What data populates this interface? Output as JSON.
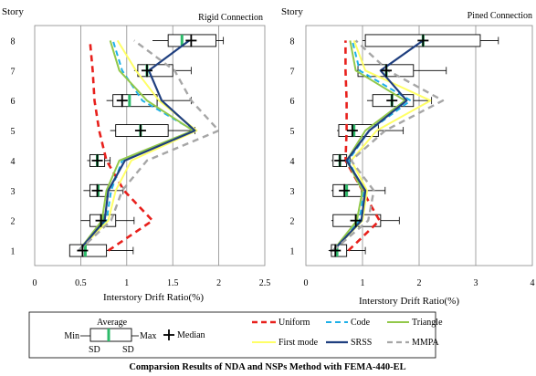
{
  "caption": "Comparsion Results of NDA and NSPs Method with FEMA-440-EL",
  "legend": {
    "box_average": "Average",
    "box_min": "Min",
    "box_max": "Max",
    "box_sd_left": "SD",
    "box_sd_right": "SD",
    "median": "Median",
    "uniform": "Uniform",
    "code": "Code",
    "triangle": "Triangle",
    "first_mode": "First mode",
    "srss": "SRSS",
    "mmpa": "MMPA"
  },
  "colors": {
    "uniform": "#e8201c",
    "code": "#1eb0e8",
    "triangle": "#92c84a",
    "first_mode": "#ffff66",
    "srss": "#1f3f7f",
    "mmpa": "#a6a6a6",
    "average": "#2dbb6a"
  },
  "chart_data": [
    {
      "type": "boxplot-line",
      "title": "Rigid Connection",
      "xlabel": "Interstory Drift Ratio(%)",
      "ylabel": "Story",
      "xlim": [
        0,
        2.5
      ],
      "xticks": [
        "0",
        "0.5",
        "1",
        "1.5",
        "2",
        "2.5"
      ],
      "xtick_values": [
        0,
        0.5,
        1,
        1.5,
        2,
        2.5
      ],
      "stories": [
        1,
        2,
        3,
        4,
        5,
        6,
        7,
        8
      ],
      "story_labels": [
        "1",
        "2",
        "3",
        "4",
        "5",
        "6",
        "7",
        "8"
      ],
      "grid": "vertical",
      "boxes": [
        {
          "story": 1,
          "min": 0.48,
          "sd_low": 0.38,
          "sd_high": 0.78,
          "max": 1.07,
          "average": 0.55,
          "median": 0.52
        },
        {
          "story": 2,
          "min": 0.5,
          "sd_low": 0.6,
          "sd_high": 0.88,
          "max": 1.08,
          "average": 0.74,
          "median": 0.72
        },
        {
          "story": 3,
          "min": 0.53,
          "sd_low": 0.6,
          "sd_high": 0.8,
          "max": 0.96,
          "average": 0.69,
          "median": 0.68
        },
        {
          "story": 4,
          "min": 0.57,
          "sd_low": 0.6,
          "sd_high": 0.76,
          "max": 0.82,
          "average": 0.68,
          "median": 0.68
        },
        {
          "story": 5,
          "min": 0.82,
          "sd_low": 0.88,
          "sd_high": 1.45,
          "max": 1.74,
          "average": 1.15,
          "median": 1.15
        },
        {
          "story": 6,
          "min": 0.78,
          "sd_low": 0.85,
          "sd_high": 1.33,
          "max": 1.7,
          "average": 1.03,
          "median": 0.95
        },
        {
          "story": 7,
          "min": 1.08,
          "sd_low": 1.12,
          "sd_high": 1.5,
          "max": 1.7,
          "average": 1.22,
          "median": 1.22
        },
        {
          "story": 8,
          "min": 1.28,
          "sd_low": 1.45,
          "sd_high": 1.97,
          "max": 2.05,
          "average": 1.6,
          "median": 1.7
        }
      ],
      "series": [
        {
          "name": "Uniform",
          "values": [
            0.8,
            1.28,
            0.97,
            0.78,
            0.7,
            0.65,
            0.63,
            0.6
          ]
        },
        {
          "name": "Code",
          "values": [
            0.48,
            0.78,
            0.83,
            0.95,
            1.73,
            1.17,
            0.95,
            0.85
          ]
        },
        {
          "name": "Triangle",
          "values": [
            0.48,
            0.73,
            0.78,
            0.92,
            1.72,
            1.22,
            0.92,
            0.82
          ]
        },
        {
          "name": "First mode",
          "values": [
            0.48,
            0.8,
            0.88,
            1.05,
            1.76,
            1.35,
            1.1,
            0.9
          ]
        },
        {
          "name": "SRSS",
          "values": [
            0.48,
            0.76,
            0.8,
            0.98,
            1.74,
            1.38,
            1.24,
            1.68
          ]
        },
        {
          "name": "MMPA",
          "values": [
            0.48,
            0.83,
            0.95,
            1.22,
            2.0,
            1.7,
            1.52,
            1.08
          ]
        }
      ]
    },
    {
      "type": "boxplot-line",
      "title": "Pined Connection",
      "xlabel": "Interstory Drift Ratio(%)",
      "ylabel": "Story",
      "xlim": [
        0,
        4
      ],
      "xticks": [
        "0",
        "1",
        "2",
        "3",
        "4"
      ],
      "xtick_values": [
        0,
        1,
        2,
        3,
        4
      ],
      "stories": [
        1,
        2,
        3,
        4,
        5,
        6,
        7,
        8
      ],
      "story_labels": [
        "1",
        "2",
        "3",
        "4",
        "5",
        "6",
        "7",
        "8"
      ],
      "grid": "vertical",
      "boxes": [
        {
          "story": 1,
          "min": 0.4,
          "sd_low": 0.45,
          "sd_high": 0.72,
          "max": 1.05,
          "average": 0.55,
          "median": 0.52
        },
        {
          "story": 2,
          "min": 0.45,
          "sd_low": 0.48,
          "sd_high": 1.32,
          "max": 1.65,
          "average": 0.9,
          "median": 0.88
        },
        {
          "story": 3,
          "min": 0.45,
          "sd_low": 0.48,
          "sd_high": 0.98,
          "max": 1.4,
          "average": 0.72,
          "median": 0.68
        },
        {
          "story": 4,
          "min": 0.45,
          "sd_low": 0.48,
          "sd_high": 0.72,
          "max": 0.78,
          "average": 0.6,
          "median": 0.6
        },
        {
          "story": 5,
          "min": 0.55,
          "sd_low": 0.58,
          "sd_high": 1.28,
          "max": 1.72,
          "average": 0.85,
          "median": 0.82
        },
        {
          "story": 6,
          "min": 1.08,
          "sd_low": 1.18,
          "sd_high": 1.9,
          "max": 2.22,
          "average": 1.52,
          "median": 1.52
        },
        {
          "story": 7,
          "min": 0.88,
          "sd_low": 0.92,
          "sd_high": 1.9,
          "max": 2.48,
          "average": 1.42,
          "median": 1.42
        },
        {
          "story": 8,
          "min": 1.0,
          "sd_low": 1.05,
          "sd_high": 3.08,
          "max": 3.4,
          "average": 2.07,
          "median": 2.07
        }
      ],
      "series": [
        {
          "name": "Uniform",
          "values": [
            0.75,
            1.3,
            1.0,
            0.7,
            0.72,
            0.72,
            0.7,
            0.7
          ]
        },
        {
          "name": "Code",
          "values": [
            0.48,
            0.95,
            1.02,
            0.75,
            1.12,
            1.85,
            0.95,
            0.82
          ]
        },
        {
          "name": "Triangle",
          "values": [
            0.48,
            0.9,
            1.0,
            0.72,
            1.05,
            1.75,
            0.88,
            0.78
          ]
        },
        {
          "name": "First mode",
          "values": [
            0.48,
            1.0,
            1.08,
            0.8,
            1.25,
            2.2,
            1.05,
            0.85
          ]
        },
        {
          "name": "SRSS",
          "values": [
            0.48,
            0.98,
            1.05,
            0.72,
            1.12,
            1.78,
            1.32,
            2.07
          ]
        },
        {
          "name": "MMPA",
          "values": [
            0.48,
            1.1,
            1.2,
            0.8,
            1.4,
            2.42,
            1.45,
            0.88
          ]
        }
      ]
    }
  ]
}
